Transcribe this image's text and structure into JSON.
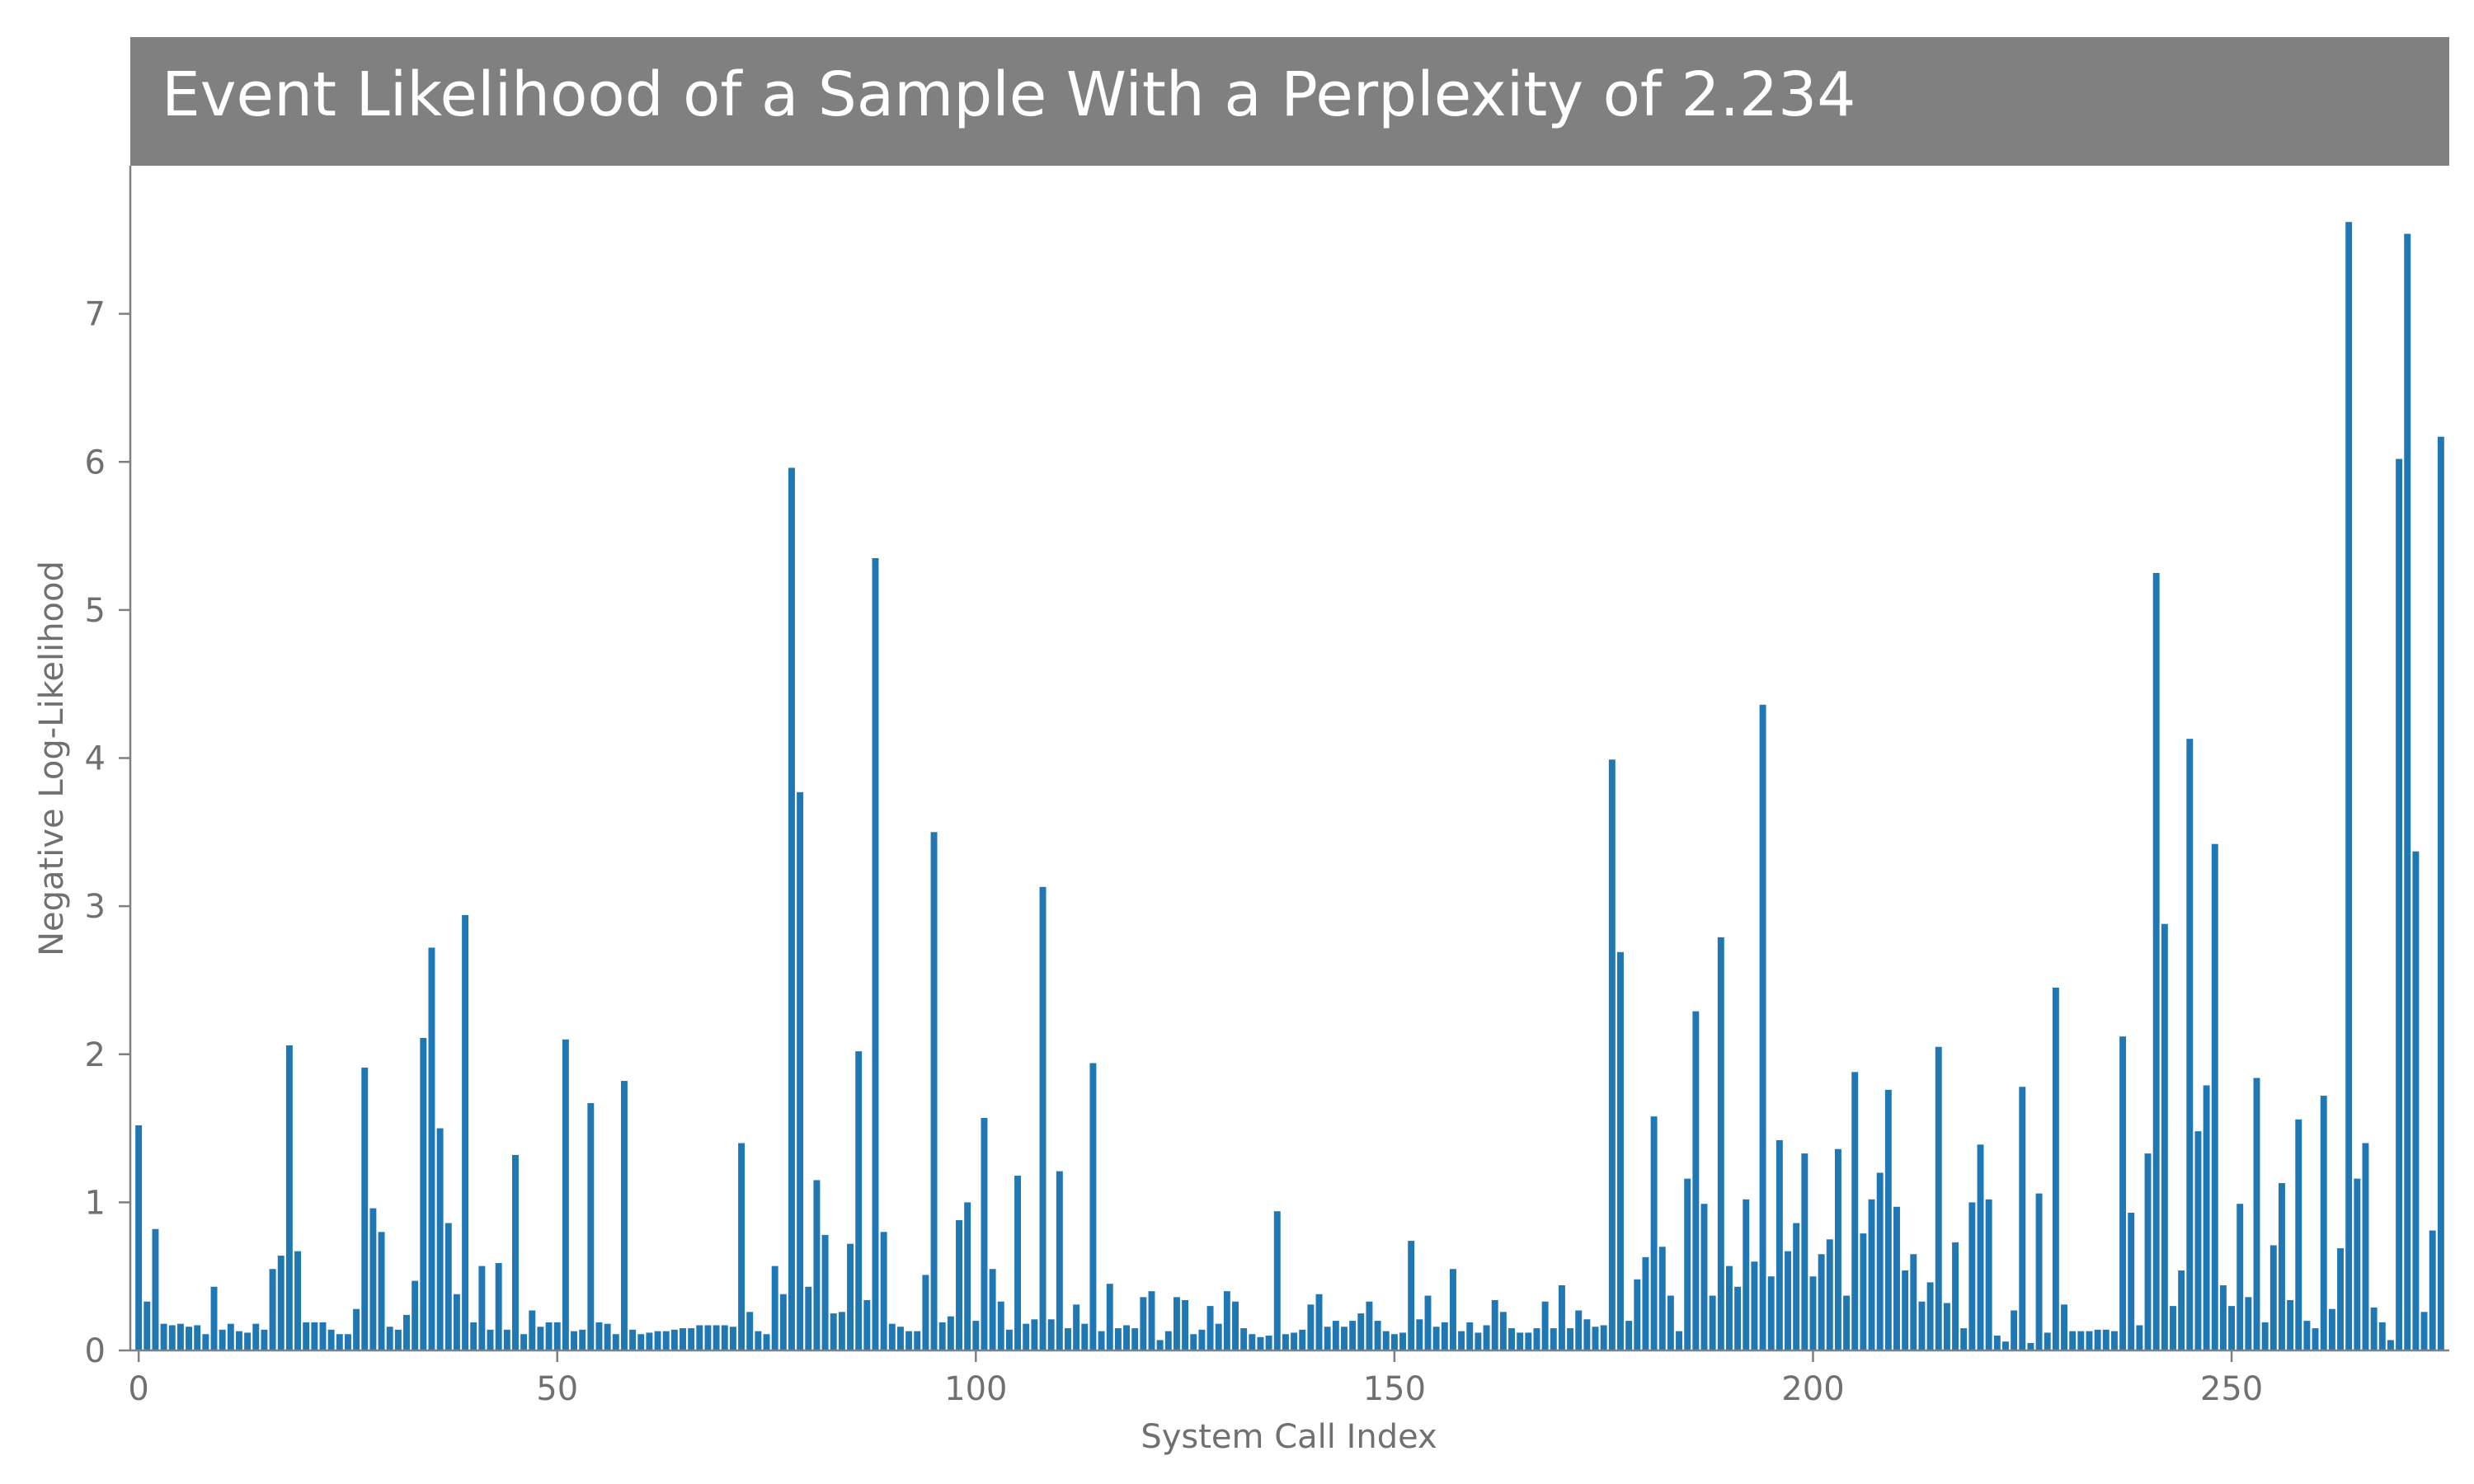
{
  "chart_data": {
    "type": "bar",
    "title": "Event Likelihood of a Sample With a Perplexity of 2.234",
    "xlabel": "System Call Index",
    "ylabel": "Negative Log-Likelihood",
    "x_ticks": [
      "0",
      "50",
      "100",
      "150",
      "200",
      "250"
    ],
    "y_ticks": [
      "0",
      "1",
      "2",
      "3",
      "4",
      "5",
      "6",
      "7"
    ],
    "xlim": [
      -1,
      276
    ],
    "ylim": [
      0,
      8
    ],
    "grid": false,
    "bar_color": "#1f77b4",
    "title_band_color": "#808080",
    "values": [
      1.52,
      0.33,
      0.82,
      0.18,
      0.17,
      0.18,
      0.16,
      0.17,
      0.11,
      0.43,
      0.14,
      0.18,
      0.13,
      0.12,
      0.18,
      0.14,
      0.55,
      0.64,
      2.06,
      0.67,
      0.19,
      0.19,
      0.19,
      0.14,
      0.11,
      0.11,
      0.28,
      1.91,
      0.96,
      0.8,
      0.16,
      0.14,
      0.24,
      0.47,
      2.11,
      2.72,
      1.5,
      0.86,
      0.38,
      2.94,
      0.19,
      0.57,
      0.14,
      0.59,
      0.14,
      1.32,
      0.11,
      0.27,
      0.16,
      0.19,
      0.19,
      2.1,
      0.13,
      0.14,
      1.67,
      0.19,
      0.18,
      0.11,
      1.82,
      0.14,
      0.11,
      0.12,
      0.13,
      0.13,
      0.14,
      0.15,
      0.15,
      0.17,
      0.17,
      0.17,
      0.17,
      0.16,
      1.4,
      0.26,
      0.13,
      0.11,
      0.57,
      0.38,
      5.96,
      3.77,
      0.43,
      1.15,
      0.78,
      0.25,
      0.26,
      0.72,
      2.02,
      0.34,
      5.35,
      0.8,
      0.18,
      0.16,
      0.13,
      0.13,
      0.51,
      3.5,
      0.19,
      0.23,
      0.88,
      1.0,
      0.2,
      1.57,
      0.55,
      0.33,
      0.14,
      1.18,
      0.18,
      0.21,
      3.13,
      0.21,
      1.21,
      0.15,
      0.31,
      0.18,
      1.94,
      0.13,
      0.45,
      0.15,
      0.17,
      0.15,
      0.36,
      0.4,
      0.07,
      0.13,
      0.36,
      0.34,
      0.11,
      0.14,
      0.3,
      0.18,
      0.4,
      0.33,
      0.15,
      0.11,
      0.09,
      0.1,
      0.94,
      0.11,
      0.12,
      0.14,
      0.31,
      0.38,
      0.16,
      0.2,
      0.16,
      0.2,
      0.25,
      0.33,
      0.2,
      0.13,
      0.11,
      0.12,
      0.74,
      0.21,
      0.37,
      0.16,
      0.19,
      0.55,
      0.13,
      0.19,
      0.12,
      0.17,
      0.34,
      0.26,
      0.15,
      0.12,
      0.12,
      0.15,
      0.33,
      0.15,
      0.44,
      0.15,
      0.27,
      0.21,
      0.16,
      0.17,
      3.99,
      2.69,
      0.2,
      0.48,
      0.63,
      1.58,
      0.7,
      0.37,
      0.13,
      1.16,
      2.29,
      0.99,
      0.37,
      2.79,
      0.57,
      0.43,
      1.02,
      0.6,
      4.36,
      0.5,
      1.42,
      0.67,
      0.86,
      1.33,
      0.5,
      0.65,
      0.75,
      1.36,
      0.37,
      1.88,
      0.79,
      1.02,
      1.2,
      1.76,
      0.97,
      0.54,
      0.65,
      0.33,
      0.46,
      2.05,
      0.32,
      0.73,
      0.15,
      1.0,
      1.39,
      1.02,
      0.1,
      0.06,
      0.27,
      1.78,
      0.05,
      1.06,
      0.12,
      2.45,
      0.31,
      0.13,
      0.13,
      0.13,
      0.14,
      0.14,
      0.13,
      2.12,
      0.93,
      0.17,
      1.33,
      5.25,
      2.88,
      0.3,
      0.54,
      4.13,
      1.48,
      1.79,
      3.42,
      0.44,
      0.3,
      0.99,
      0.36,
      1.84,
      0.19,
      0.71,
      1.13,
      0.34,
      1.56,
      0.2,
      0.15,
      1.72,
      0.28,
      0.69,
      7.62,
      1.16,
      1.4,
      0.29,
      0.19,
      0.07,
      6.02,
      7.54,
      3.37,
      0.26,
      0.81,
      6.17
    ]
  }
}
